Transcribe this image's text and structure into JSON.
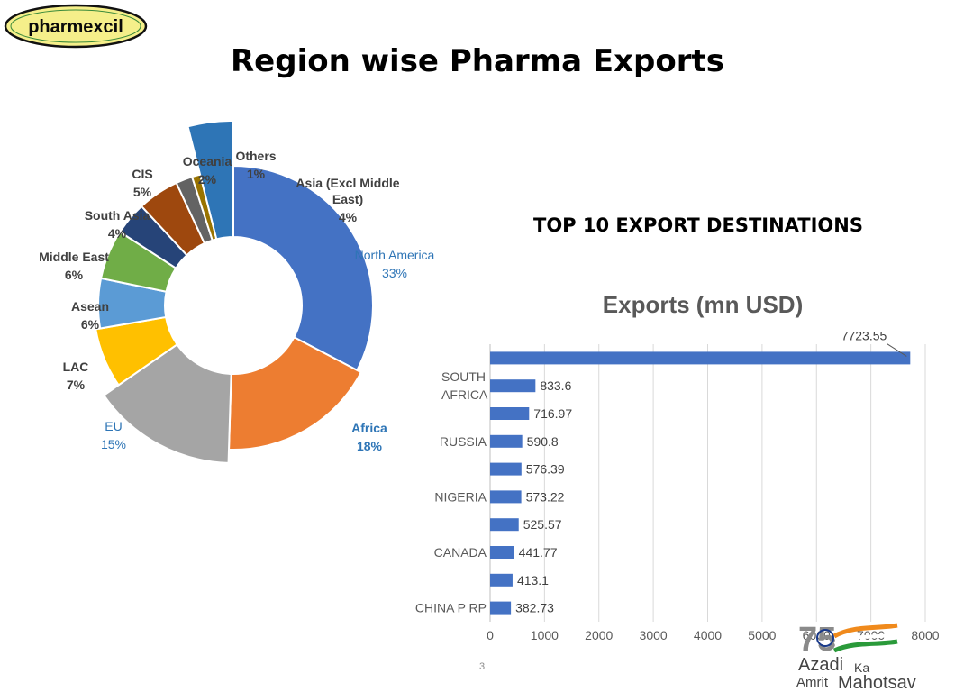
{
  "logo": {
    "text": "pharmexcil"
  },
  "page": {
    "title": "Region wise Pharma Exports",
    "subheading": "TOP 10 EXPORT DESTINATIONS",
    "number": "3"
  },
  "badge": {
    "numeral": "75",
    "line1": "Azadi",
    "ka": "Ka",
    "amrit": "Amrit",
    "mahotsav": "Mahotsav"
  },
  "chart_data": [
    {
      "type": "pie",
      "title": "",
      "slices": [
        {
          "label": "North America",
          "value": 33,
          "display": "33%",
          "color": "#4472C4"
        },
        {
          "label": "Africa",
          "value": 18,
          "display": "18%",
          "color": "#ED7D31"
        },
        {
          "label": "EU",
          "value": 15,
          "display": "15%",
          "color": "#A5A5A5"
        },
        {
          "label": "LAC",
          "value": 7,
          "display": "7%",
          "color": "#FFC000"
        },
        {
          "label": "Asean",
          "value": 6,
          "display": "6%",
          "color": "#5B9BD5"
        },
        {
          "label": "Middle East",
          "value": 6,
          "display": "6%",
          "color": "#70AD47"
        },
        {
          "label": "South Asia",
          "value": 4,
          "display": "4%",
          "color": "#264478"
        },
        {
          "label": "CIS",
          "value": 5,
          "display": "5%",
          "color": "#9E480E"
        },
        {
          "label": "Oceania",
          "value": 2,
          "display": "2%",
          "color": "#636363"
        },
        {
          "label": "Others",
          "value": 1,
          "display": "1%",
          "color": "#997300"
        },
        {
          "label": "Asia (Excl Middle East)",
          "value": 4,
          "display": "4%",
          "color": "#2E75B6"
        }
      ]
    },
    {
      "type": "bar",
      "orientation": "horizontal",
      "title": "Exports (mn USD)",
      "categories": [
        "",
        "SOUTH AFRICA",
        "",
        "RUSSIA",
        "",
        "NIGERIA",
        "",
        "CANADA",
        "",
        "CHINA P RP"
      ],
      "values": [
        7723.55,
        833.6,
        716.97,
        590.8,
        576.39,
        573.22,
        525.57,
        441.77,
        413.1,
        382.73
      ],
      "value_labels": [
        "7723.55",
        "833.6",
        "716.97",
        "590.8",
        "576.39",
        "573.22",
        "525.57",
        "441.77",
        "413.1",
        "382.73"
      ],
      "xlim": [
        0,
        8000
      ],
      "xticks": [
        "0",
        "1000",
        "2000",
        "3000",
        "4000",
        "5000",
        "6000",
        "7000",
        "8000"
      ],
      "grid": true,
      "bar_color": "#4472C4"
    }
  ]
}
